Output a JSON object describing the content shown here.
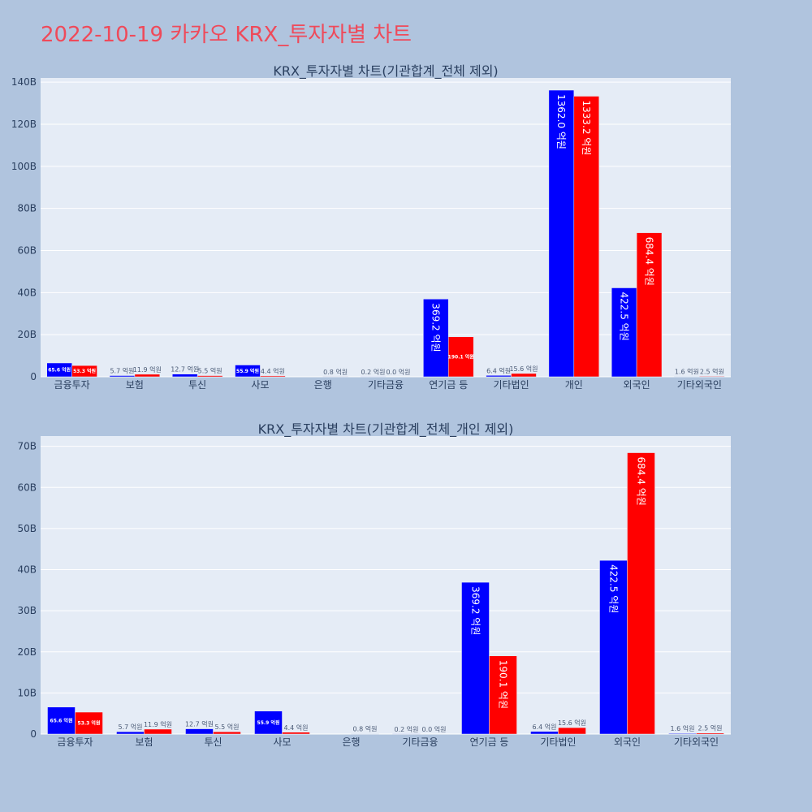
{
  "page_title": "2022-10-19 카카오 KRX_투자자별 차트",
  "colors": {
    "buy": "#0000ff",
    "sell": "#ff0000",
    "title": "#ef4a5a",
    "background": "#b0c4de",
    "plot_bg": "#e5ecf6"
  },
  "chart_data": [
    {
      "type": "bar",
      "title": "KRX_투자자별 차트(기관합계_전체 제외)",
      "categories": [
        "금융투자",
        "보험",
        "투신",
        "사모",
        "은행",
        "기타금융",
        "연기금 등",
        "기타법인",
        "개인",
        "외국인",
        "기타외국인"
      ],
      "series": [
        {
          "color": "#0000ff",
          "values": [
            6.56,
            0.57,
            1.27,
            5.59,
            0.0,
            0.02,
            36.92,
            0.64,
            136.2,
            42.25,
            0.16
          ],
          "labels": [
            "65.6 억원",
            "5.7 억원",
            "12.7 억원",
            "55.9 억원",
            "",
            "0.2 억원",
            "369.2 억원",
            "6.4 억원",
            "1362.0 억원",
            "422.5 억원",
            "1.6 억원"
          ]
        },
        {
          "color": "#ff0000",
          "values": [
            5.33,
            1.19,
            0.55,
            0.44,
            0.08,
            0.0,
            19.01,
            1.56,
            133.32,
            68.44,
            0.25
          ],
          "labels": [
            "53.3 억원",
            "11.9 억원",
            "5.5 억원",
            "4.4 억원",
            "0.8 억원",
            "0.0 억원",
            "190.1 억원",
            "15.6 억원",
            "1333.2 억원",
            "684.4 억원",
            "2.5 억원"
          ]
        }
      ],
      "ylim": [
        0,
        142
      ],
      "yticks": [
        0,
        20,
        40,
        60,
        80,
        100,
        120,
        140
      ],
      "ytick_labels": [
        "0",
        "20B",
        "40B",
        "60B",
        "80B",
        "100B",
        "120B",
        "140B"
      ],
      "grid": true
    },
    {
      "type": "bar",
      "title": "KRX_투자자별 차트(기관합계_전체_개인 제외)",
      "categories": [
        "금융투자",
        "보험",
        "투신",
        "사모",
        "은행",
        "기타금융",
        "연기금 등",
        "기타법인",
        "외국인",
        "기타외국인"
      ],
      "series": [
        {
          "color": "#0000ff",
          "values": [
            6.56,
            0.57,
            1.27,
            5.59,
            0.0,
            0.02,
            36.92,
            0.64,
            42.25,
            0.16
          ],
          "labels": [
            "65.6 억원",
            "5.7 억원",
            "12.7 억원",
            "55.9 억원",
            "",
            "0.2 억원",
            "369.2 억원",
            "6.4 억원",
            "422.5 억원",
            "1.6 억원"
          ]
        },
        {
          "color": "#ff0000",
          "values": [
            5.33,
            1.19,
            0.55,
            0.44,
            0.08,
            0.0,
            19.01,
            1.56,
            68.44,
            0.25
          ],
          "labels": [
            "53.3 억원",
            "11.9 억원",
            "5.5 억원",
            "4.4 억원",
            "0.8 억원",
            "0.0 억원",
            "190.1 억원",
            "15.6 억원",
            "684.4 억원",
            "2.5 억원"
          ]
        }
      ],
      "ylim": [
        0,
        72.5
      ],
      "yticks": [
        0,
        10,
        20,
        30,
        40,
        50,
        60,
        70
      ],
      "ytick_labels": [
        "0",
        "10B",
        "20B",
        "30B",
        "40B",
        "50B",
        "60B",
        "70B"
      ],
      "grid": true
    }
  ]
}
